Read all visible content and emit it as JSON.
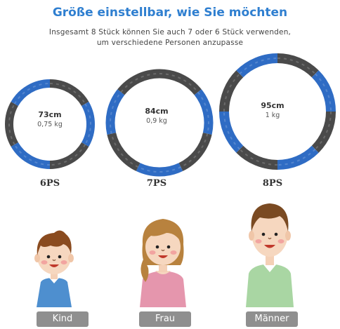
{
  "heading": {
    "title": "Größe einstellbar, wie Sie möchten",
    "subtitle_line1": "Insgesamt 8 Stück können Sie auch 7 oder 6 Stück verwenden,",
    "subtitle_line2": "um verschiedene Personen anzupasse"
  },
  "colors": {
    "title": "#2f7fd0",
    "hoop_blue": "#2f6cc4",
    "hoop_gray": "#4a4a4a",
    "label_bg": "#8f8f8f"
  },
  "hoops": [
    {
      "size": "73cm",
      "weight": "0,75 kg",
      "pieces_label": "6PS",
      "pieces": 6
    },
    {
      "size": "84cm",
      "weight": "0,9 kg",
      "pieces_label": "7PS",
      "pieces": 7
    },
    {
      "size": "95cm",
      "weight": "1 kg",
      "pieces_label": "8PS",
      "pieces": 8
    }
  ],
  "people": [
    {
      "label": "Kind",
      "icon": "child-icon"
    },
    {
      "label": "Frau",
      "icon": "woman-icon"
    },
    {
      "label": "Männer",
      "icon": "man-icon"
    }
  ]
}
